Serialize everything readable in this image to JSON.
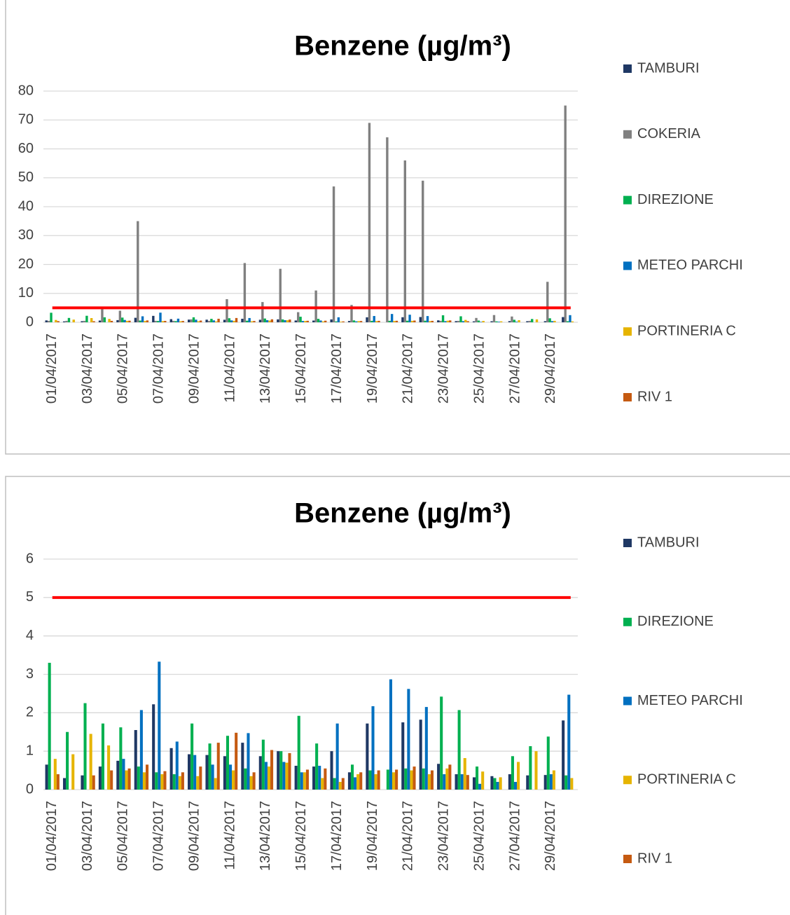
{
  "chart_data": [
    {
      "type": "bar",
      "title": "Benzene (µg/m³)",
      "categories": [
        "01/04/2017",
        null,
        "03/04/2017",
        null,
        "05/04/2017",
        null,
        "07/04/2017",
        null,
        "09/04/2017",
        null,
        "11/04/2017",
        null,
        "13/04/2017",
        null,
        "15/04/2017",
        null,
        "17/04/2017",
        null,
        "19/04/2017",
        null,
        "21/04/2017",
        null,
        "23/04/2017",
        null,
        "25/04/2017",
        null,
        "27/04/2017",
        null,
        "29/04/2017",
        null
      ],
      "series": [
        {
          "name": "TAMBURI",
          "color": "#1f3864",
          "values": [
            0.65,
            0.3,
            0.37,
            0.6,
            0.75,
            1.55,
            2.22,
            1.08,
            0.92,
            0.9,
            0.87,
            1.22,
            0.87,
            1.0,
            0.62,
            0.6,
            1.0,
            0.45,
            1.72,
            0,
            1.75,
            1.82,
            0.67,
            0.4,
            0.32,
            0.35,
            0.4,
            0.37,
            0.38,
            1.8
          ]
        },
        {
          "name": "COKERIA",
          "color": "#808080",
          "values": [
            0.5,
            0.5,
            0.5,
            5,
            4,
            35,
            0.5,
            0.5,
            1,
            0.5,
            8,
            20.5,
            7,
            18.5,
            3.5,
            11,
            47,
            6,
            69,
            64,
            56,
            49,
            0.5,
            0.5,
            1.5,
            2.5,
            2,
            0.5,
            14,
            75
          ]
        },
        {
          "name": "DIREZIONE",
          "color": "#00b050",
          "values": [
            3.3,
            1.5,
            2.25,
            1.72,
            1.62,
            0.6,
            0.45,
            0.4,
            1.72,
            1.2,
            1.4,
            0.55,
            1.3,
            1.0,
            1.92,
            1.2,
            0.3,
            0.65,
            0.5,
            0.52,
            0.55,
            0.55,
            2.42,
            2.07,
            0.6,
            0.3,
            0.87,
            1.13,
            1.38,
            0.37
          ]
        },
        {
          "name": "METEO PARCHI",
          "color": "#0070c0",
          "values": [
            0,
            0,
            0,
            0,
            0.8,
            2.07,
            3.33,
            1.25,
            0.9,
            0.65,
            0.65,
            1.47,
            0.72,
            0.72,
            0.45,
            0.62,
            1.72,
            0.32,
            2.17,
            2.87,
            2.62,
            2.15,
            0.4,
            0.4,
            0.15,
            0.2,
            0.2,
            0,
            0.4,
            2.47
          ]
        },
        {
          "name": "PORTINERIA C",
          "color": "#e6b400",
          "values": [
            0.8,
            0.92,
            1.45,
            1.15,
            0.5,
            0.45,
            0.4,
            0.35,
            0.35,
            0.3,
            0.5,
            0.35,
            0.6,
            0.7,
            0.45,
            0.3,
            0.2,
            0.4,
            0.4,
            0.45,
            0.5,
            0.4,
            0.55,
            0.82,
            0.47,
            0.32,
            0.72,
            1.0,
            0.5,
            0.3
          ]
        },
        {
          "name": "RIV 1",
          "color": "#c55a11",
          "values": [
            0.4,
            0,
            0.37,
            0.5,
            0.55,
            0.65,
            0.48,
            0.45,
            0.6,
            1.22,
            1.48,
            0.45,
            1.03,
            0.95,
            0.52,
            0.55,
            0.3,
            0.45,
            0.5,
            0.52,
            0.6,
            0.5,
            0.65,
            0.38,
            0,
            0,
            0,
            0,
            0,
            0
          ]
        }
      ],
      "ylim": [
        0,
        80
      ],
      "yticks": [
        0,
        10,
        20,
        30,
        40,
        50,
        60,
        70,
        80
      ],
      "grid": true,
      "threshold": 5,
      "threshold_color": "#ff0000",
      "legend": "right"
    },
    {
      "type": "bar",
      "title": "Benzene (µg/m³)",
      "categories": [
        "01/04/2017",
        null,
        "03/04/2017",
        null,
        "05/04/2017",
        null,
        "07/04/2017",
        null,
        "09/04/2017",
        null,
        "11/04/2017",
        null,
        "13/04/2017",
        null,
        "15/04/2017",
        null,
        "17/04/2017",
        null,
        "19/04/2017",
        null,
        "21/04/2017",
        null,
        "23/04/2017",
        null,
        "25/04/2017",
        null,
        "27/04/2017",
        null,
        "29/04/2017",
        null
      ],
      "series": [
        {
          "name": "TAMBURI",
          "color": "#1f3864",
          "values": [
            0.65,
            0.3,
            0.37,
            0.6,
            0.75,
            1.55,
            2.22,
            1.08,
            0.92,
            0.9,
            0.87,
            1.22,
            0.87,
            1.0,
            0.62,
            0.6,
            1.0,
            0.45,
            1.72,
            0,
            1.75,
            1.82,
            0.67,
            0.4,
            0.32,
            0.35,
            0.4,
            0.37,
            0.38,
            1.8
          ]
        },
        {
          "name": "DIREZIONE",
          "color": "#00b050",
          "values": [
            3.3,
            1.5,
            2.25,
            1.72,
            1.62,
            0.6,
            0.45,
            0.4,
            1.72,
            1.2,
            1.4,
            0.55,
            1.3,
            1.0,
            1.92,
            1.2,
            0.3,
            0.65,
            0.5,
            0.52,
            0.55,
            0.55,
            2.42,
            2.07,
            0.6,
            0.3,
            0.87,
            1.13,
            1.38,
            0.37
          ]
        },
        {
          "name": "METEO PARCHI",
          "color": "#0070c0",
          "values": [
            0,
            0,
            0,
            0,
            0.8,
            2.07,
            3.33,
            1.25,
            0.9,
            0.65,
            0.65,
            1.47,
            0.72,
            0.72,
            0.45,
            0.62,
            1.72,
            0.32,
            2.17,
            2.87,
            2.62,
            2.15,
            0.4,
            0.4,
            0.15,
            0.2,
            0.2,
            0,
            0.4,
            2.47
          ]
        },
        {
          "name": "PORTINERIA C",
          "color": "#e6b400",
          "values": [
            0.8,
            0.92,
            1.45,
            1.15,
            0.5,
            0.45,
            0.4,
            0.35,
            0.35,
            0.3,
            0.5,
            0.35,
            0.6,
            0.7,
            0.45,
            0.3,
            0.2,
            0.4,
            0.4,
            0.45,
            0.5,
            0.4,
            0.55,
            0.82,
            0.47,
            0.32,
            0.72,
            1.0,
            0.5,
            0.3
          ]
        },
        {
          "name": "RIV 1",
          "color": "#c55a11",
          "values": [
            0.4,
            0,
            0.37,
            0.5,
            0.55,
            0.65,
            0.48,
            0.45,
            0.6,
            1.22,
            1.48,
            0.45,
            1.03,
            0.95,
            0.52,
            0.55,
            0.3,
            0.45,
            0.5,
            0.52,
            0.6,
            0.5,
            0.65,
            0.38,
            0,
            0,
            0,
            0,
            0,
            0
          ]
        }
      ],
      "ylim": [
        0,
        6
      ],
      "yticks": [
        0,
        1,
        2,
        3,
        4,
        5,
        6
      ],
      "grid": true,
      "threshold": 5,
      "threshold_color": "#ff0000",
      "legend": "right"
    }
  ]
}
